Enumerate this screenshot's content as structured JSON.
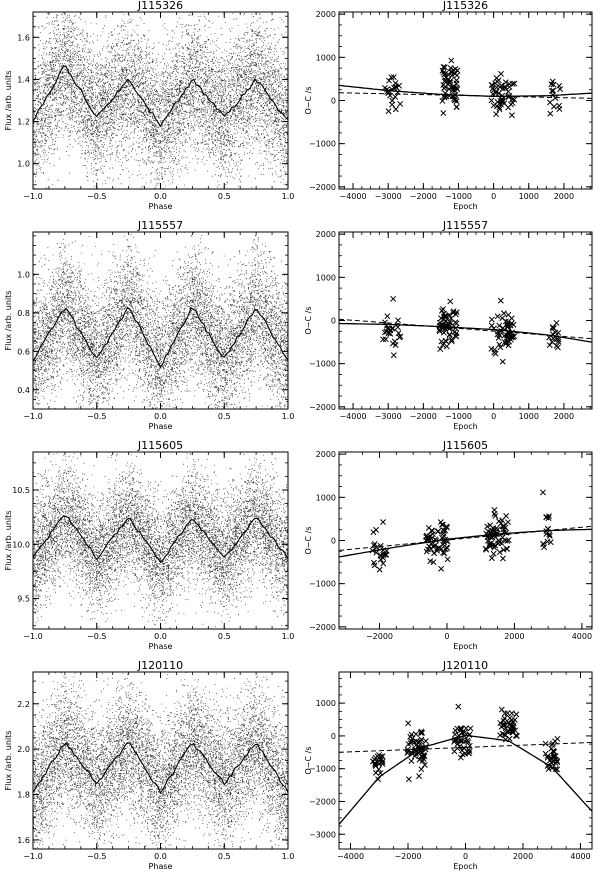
{
  "figure": {
    "background": "#ffffff",
    "ink": "#000000"
  },
  "chart_data": [
    {
      "type": "scatter",
      "kind": "lightcurve",
      "title": "J115326",
      "xlabel": "Phase",
      "ylabel": "Flux /arb. units",
      "xlim": [
        -1.0,
        1.0
      ],
      "ylim": [
        0.88,
        1.72
      ],
      "xticks": [
        -1.0,
        -0.5,
        0.0,
        0.5,
        1.0
      ],
      "xtick_labels": [
        "−1.0",
        "−0.5",
        "0.0",
        "0.5",
        "1.0"
      ],
      "yticks": [
        1.0,
        1.2,
        1.4,
        1.6
      ],
      "ytick_labels": [
        "1.0",
        "1.2",
        "1.4",
        "1.6"
      ],
      "mean_curve": {
        "x": [
          -1.0,
          -0.75,
          -0.5,
          -0.25,
          0.0,
          0.25,
          0.5,
          0.75,
          1.0
        ],
        "y": [
          1.2,
          1.47,
          1.22,
          1.4,
          1.18,
          1.4,
          1.22,
          1.4,
          1.2
        ]
      },
      "scatter_sigma": 0.16
    },
    {
      "type": "scatter",
      "kind": "oc",
      "title": "J115326",
      "xlabel": "Epoch",
      "ylabel": "O−C /s",
      "xlim": [
        -4400,
        2800
      ],
      "ylim": [
        -2050,
        2050
      ],
      "xticks": [
        -4000,
        -3000,
        -2000,
        -1000,
        0,
        1000,
        2000
      ],
      "xtick_labels": [
        "−4000",
        "−3000",
        "−2000",
        "−1000",
        "0",
        "1000",
        "2000"
      ],
      "yticks": [
        -2000,
        -1000,
        0,
        1000,
        2000
      ],
      "ytick_labels": [
        "−2000",
        "−1000",
        "0",
        "1000",
        "2000"
      ],
      "solid_fit": {
        "x": [
          -4400,
          -3000,
          -1500,
          0,
          1500,
          2800
        ],
        "y": [
          350,
          230,
          140,
          95,
          110,
          170
        ]
      },
      "dashed_fit": {
        "x": [
          -4400,
          2800
        ],
        "y": [
          180,
          50
        ]
      },
      "clusters": [
        {
          "epoch": -2900,
          "width": 500,
          "center": 150,
          "spread": 380,
          "n": 22
        },
        {
          "epoch": -1250,
          "width": 450,
          "center": 300,
          "spread": 450,
          "n": 55
        },
        {
          "epoch": 250,
          "width": 700,
          "center": 120,
          "spread": 420,
          "n": 50
        },
        {
          "epoch": 1750,
          "width": 300,
          "center": 150,
          "spread": 450,
          "n": 14
        }
      ]
    },
    {
      "type": "scatter",
      "kind": "lightcurve",
      "title": "J115557",
      "xlabel": "Phase",
      "ylabel": "Flux /arb. units",
      "xlim": [
        -1.0,
        1.0
      ],
      "ylim": [
        0.3,
        1.22
      ],
      "xticks": [
        -1.0,
        -0.5,
        0.0,
        0.5,
        1.0
      ],
      "xtick_labels": [
        "−1.0",
        "−0.5",
        "0.0",
        "0.5",
        "1.0"
      ],
      "yticks": [
        0.4,
        0.6,
        0.8,
        1.0
      ],
      "ytick_labels": [
        "0.4",
        "0.6",
        "0.8",
        "1.0"
      ],
      "mean_curve": {
        "x": [
          -1.0,
          -0.75,
          -0.5,
          -0.25,
          0.0,
          0.25,
          0.5,
          0.75,
          1.0
        ],
        "y": [
          0.55,
          0.83,
          0.56,
          0.83,
          0.52,
          0.83,
          0.56,
          0.83,
          0.55
        ]
      },
      "scatter_sigma": 0.17
    },
    {
      "type": "scatter",
      "kind": "oc",
      "title": "J115557",
      "xlabel": "Epoch",
      "ylabel": "O−C /s",
      "xlim": [
        -4400,
        2800
      ],
      "ylim": [
        -2050,
        2050
      ],
      "xticks": [
        -4000,
        -3000,
        -2000,
        -1000,
        0,
        1000,
        2000
      ],
      "xtick_labels": [
        "−4000",
        "−3000",
        "−2000",
        "−1000",
        "0",
        "1000",
        "2000"
      ],
      "yticks": [
        -2000,
        -1000,
        0,
        1000,
        2000
      ],
      "ytick_labels": [
        "−2000",
        "−1000",
        "0",
        "1000",
        "2000"
      ],
      "solid_fit": {
        "x": [
          -4400,
          -3000,
          -1500,
          0,
          1500,
          2800
        ],
        "y": [
          -70,
          -90,
          -140,
          -210,
          -330,
          -500
        ]
      },
      "dashed_fit": {
        "x": [
          -4400,
          2800
        ],
        "y": [
          30,
          -420
        ]
      },
      "clusters": [
        {
          "epoch": -2900,
          "width": 550,
          "center": -200,
          "spread": 420,
          "n": 24
        },
        {
          "epoch": -1300,
          "width": 500,
          "center": -100,
          "spread": 420,
          "n": 55
        },
        {
          "epoch": 250,
          "width": 700,
          "center": -200,
          "spread": 450,
          "n": 52
        },
        {
          "epoch": 1700,
          "width": 300,
          "center": -350,
          "spread": 350,
          "n": 16
        }
      ]
    },
    {
      "type": "scatter",
      "kind": "lightcurve",
      "title": "J115605",
      "xlabel": "Phase",
      "ylabel": "Flux /arb. units",
      "xlim": [
        -1.0,
        1.0
      ],
      "ylim": [
        9.22,
        10.85
      ],
      "xticks": [
        -1.0,
        -0.5,
        0.0,
        0.5,
        1.0
      ],
      "xtick_labels": [
        "−1.0",
        "−0.5",
        "0.0",
        "0.5",
        "1.0"
      ],
      "yticks": [
        9.5,
        10.0,
        10.5
      ],
      "ytick_labels": [
        "9.5",
        "10.0",
        "10.5"
      ],
      "mean_curve": {
        "x": [
          -1.0,
          -0.75,
          -0.5,
          -0.25,
          0.0,
          0.25,
          0.5,
          0.75,
          1.0
        ],
        "y": [
          9.87,
          10.28,
          9.87,
          10.25,
          9.83,
          10.25,
          9.87,
          10.25,
          9.87
        ]
      },
      "scatter_sigma": 0.26
    },
    {
      "type": "scatter",
      "kind": "oc",
      "title": "J115605",
      "xlabel": "Epoch",
      "ylabel": "O−C /s",
      "xlim": [
        -3200,
        4300
      ],
      "ylim": [
        -2050,
        2050
      ],
      "xticks": [
        -2000,
        0,
        2000,
        4000
      ],
      "xtick_labels": [
        "−2000",
        "0",
        "2000",
        "4000"
      ],
      "yticks": [
        -2000,
        -1000,
        0,
        1000,
        2000
      ],
      "ytick_labels": [
        "−2000",
        "−1000",
        "0",
        "1000",
        "2000"
      ],
      "solid_fit": {
        "x": [
          -3200,
          -1500,
          0,
          1500,
          3000,
          4300
        ],
        "y": [
          -380,
          -150,
          30,
          150,
          230,
          260
        ]
      },
      "dashed_fit": {
        "x": [
          -3200,
          4300
        ],
        "y": [
          -230,
          330
        ]
      },
      "clusters": [
        {
          "epoch": -2000,
          "width": 450,
          "center": -200,
          "spread": 400,
          "n": 22
        },
        {
          "epoch": -300,
          "width": 650,
          "center": 0,
          "spread": 420,
          "n": 55
        },
        {
          "epoch": 1500,
          "width": 700,
          "center": 150,
          "spread": 450,
          "n": 60
        },
        {
          "epoch": 2950,
          "width": 300,
          "center": 250,
          "spread": 400,
          "n": 16
        }
      ]
    },
    {
      "type": "scatter",
      "kind": "lightcurve",
      "title": "J120110",
      "xlabel": "Phase",
      "ylabel": "Flux /arb. units",
      "xlim": [
        -1.0,
        1.0
      ],
      "ylim": [
        1.56,
        2.34
      ],
      "xticks": [
        -1.0,
        -0.5,
        0.0,
        0.5,
        1.0
      ],
      "xtick_labels": [
        "−1.0",
        "−0.5",
        "0.0",
        "0.5",
        "1.0"
      ],
      "yticks": [
        1.6,
        1.8,
        2.0,
        2.2
      ],
      "ytick_labels": [
        "1.6",
        "1.8",
        "2.0",
        "2.2"
      ],
      "mean_curve": {
        "x": [
          -1.0,
          -0.75,
          -0.5,
          -0.25,
          0.0,
          0.25,
          0.5,
          0.75,
          1.0
        ],
        "y": [
          1.81,
          2.03,
          1.85,
          2.03,
          1.81,
          2.03,
          1.85,
          2.03,
          1.81
        ]
      },
      "scatter_sigma": 0.14
    },
    {
      "type": "scatter",
      "kind": "oc",
      "title": "J120110",
      "xlabel": "Epoch",
      "ylabel": "O−C /s",
      "xlim": [
        -4400,
        4400
      ],
      "ylim": [
        -3450,
        1950
      ],
      "xticks": [
        -4000,
        -2000,
        0,
        2000,
        4000
      ],
      "xtick_labels": [
        "−4000",
        "−2000",
        "0",
        "2000",
        "4000"
      ],
      "yticks": [
        -3000,
        -2000,
        -1000,
        0,
        1000
      ],
      "ytick_labels": [
        "−3000",
        "−2000",
        "−1000",
        "0",
        "1000"
      ],
      "solid_fit": {
        "x": [
          -4400,
          -3000,
          -1500,
          0,
          1500,
          3000,
          4400
        ],
        "y": [
          -2700,
          -1250,
          -350,
          20,
          -150,
          -950,
          -2300
        ]
      },
      "dashed_fit": {
        "x": [
          -4400,
          4400
        ],
        "y": [
          -500,
          -200
        ]
      },
      "clusters": [
        {
          "epoch": -3000,
          "width": 450,
          "center": -800,
          "spread": 500,
          "n": 22
        },
        {
          "epoch": -1700,
          "width": 650,
          "center": -400,
          "spread": 500,
          "n": 55
        },
        {
          "epoch": -100,
          "width": 600,
          "center": -150,
          "spread": 420,
          "n": 40
        },
        {
          "epoch": 1500,
          "width": 600,
          "center": 200,
          "spread": 420,
          "n": 40
        },
        {
          "epoch": 3000,
          "width": 450,
          "center": -700,
          "spread": 450,
          "n": 30
        }
      ]
    }
  ]
}
